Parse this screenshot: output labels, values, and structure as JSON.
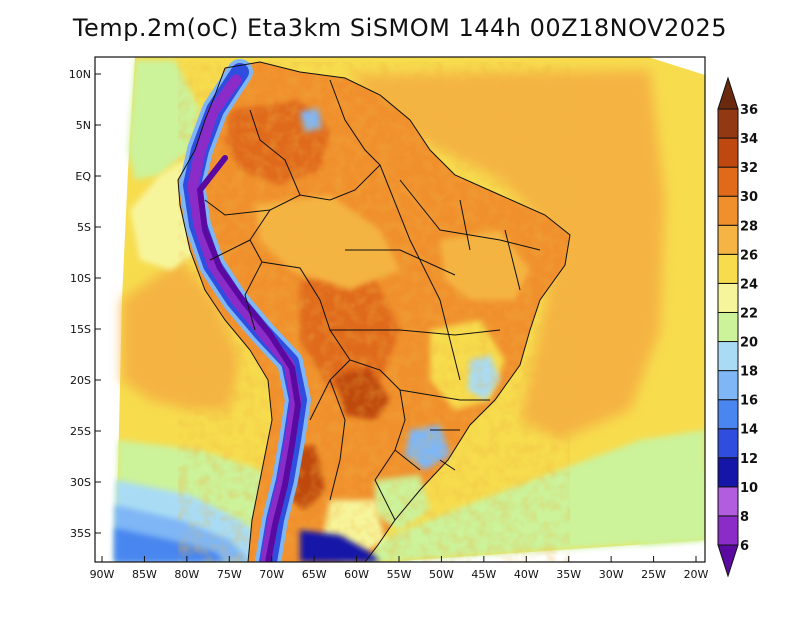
{
  "title": "Temp.2m(oC) Eta3km SiSMOM 144h 00Z18NOV2025",
  "map": {
    "variable": "2 m temperature",
    "units": "oC",
    "lat_ticks": [
      "10N",
      "5N",
      "EQ",
      "5S",
      "10S",
      "15S",
      "20S",
      "25S",
      "30S",
      "35S"
    ],
    "lon_ticks": [
      "90W",
      "85W",
      "80W",
      "75W",
      "70W",
      "65W",
      "60W",
      "55W",
      "50W",
      "45W",
      "40W",
      "35W",
      "30W",
      "25W",
      "20W"
    ]
  },
  "colorbar": {
    "levels": [
      "6",
      "8",
      "10",
      "12",
      "14",
      "16",
      "18",
      "20",
      "22",
      "24",
      "26",
      "28",
      "30",
      "32",
      "34",
      "36"
    ],
    "colors": [
      "#5a0aa0",
      "#8b2bc8",
      "#b25ce0",
      "#1515a8",
      "#2f4ee0",
      "#4a86ef",
      "#7fb6f5",
      "#a9dcf4",
      "#ccf29a",
      "#f7f59c",
      "#f7dc4e",
      "#f5b443",
      "#f0902d",
      "#e06a1a",
      "#bf4810",
      "#923812",
      "#6b2a0e"
    ]
  }
}
